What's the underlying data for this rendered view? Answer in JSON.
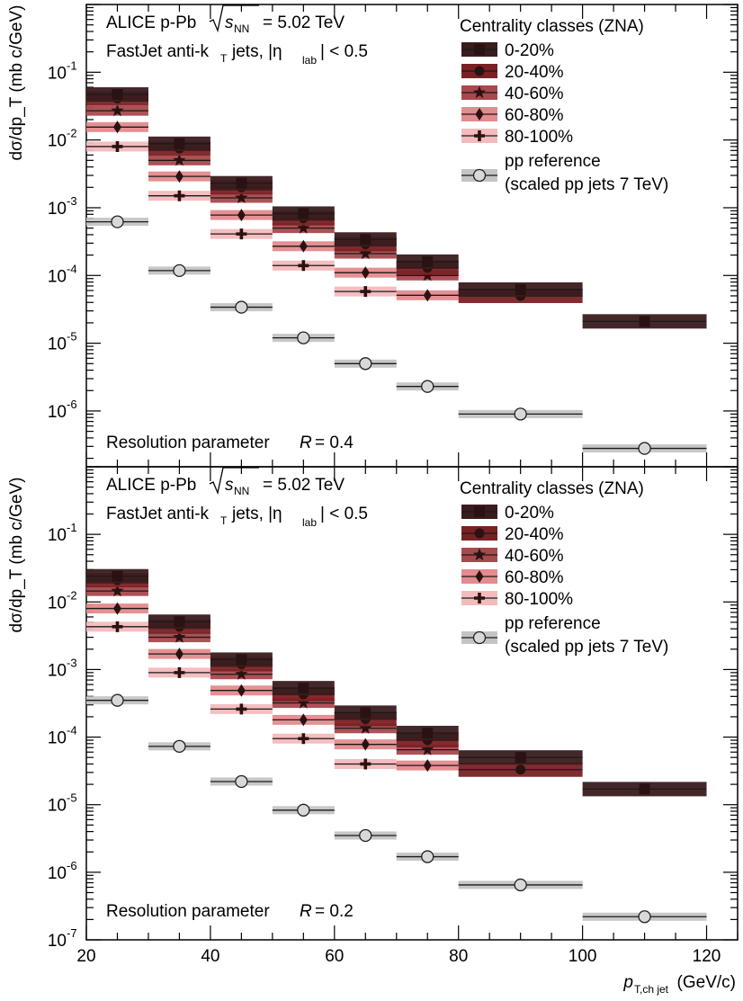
{
  "figure": {
    "xaxis_title_main": "p",
    "xaxis_title_sub": "T,ch jet",
    "xaxis_title_unit": "(GeV/c)"
  },
  "colors": {
    "0-20%": "#3a1c1e",
    "20-40%": "#7a2124",
    "40-60%": "#a8494d",
    "60-80%": "#e58a8d",
    "80-100%": "#f3bbbd",
    "pp reference": "#c4c4c4",
    "marker_pp_fill": "#d8d8d8"
  },
  "chart_data": [
    {
      "type": "scatter",
      "yscale": "log",
      "ylabel": "dσ/dp_T (mb c/GeV)",
      "xlabel": "p_T,ch jet (GeV/c)",
      "xlim": [
        20,
        125
      ],
      "ylim": [
        1.5e-07,
        1.0
      ],
      "xticks": [
        20,
        40,
        60,
        80,
        100,
        120
      ],
      "yticks": [
        {
          "value": 1e-06,
          "base": "10",
          "exp": "-6"
        },
        {
          "value": 1e-05,
          "base": "10",
          "exp": "-5"
        },
        {
          "value": 0.0001,
          "base": "10",
          "exp": "-4"
        },
        {
          "value": 0.001,
          "base": "10",
          "exp": "-3"
        },
        {
          "value": 0.01,
          "base": "10",
          "exp": "-2"
        },
        {
          "value": 0.1,
          "base": "10",
          "exp": "-1"
        }
      ],
      "annotation_line1": "ALICE p-Pb",
      "annotation_energy": "= 5.02 TeV",
      "annotation_line2": "FastJet anti-k",
      "annotation_line2_rest": "jets, |η",
      "annotation_line2_end": "| < 0.5",
      "resolution_label": "Resolution parameter",
      "resolution_value": "= 0.4",
      "legend_title": "Centrality classes (ZNA)",
      "legend_pp_line1": "pp reference",
      "legend_pp_line2": "(scaled pp jets 7 TeV)",
      "series": [
        {
          "name": "0-20%",
          "marker": "square",
          "points": [
            {
              "x": 25,
              "xlo": 20,
              "xhi": 30,
              "y": 0.047
            },
            {
              "x": 35,
              "xlo": 30,
              "xhi": 40,
              "y": 0.0088
            },
            {
              "x": 45,
              "xlo": 40,
              "xhi": 50,
              "y": 0.0023
            },
            {
              "x": 55,
              "xlo": 50,
              "xhi": 60,
              "y": 0.00082
            },
            {
              "x": 65,
              "xlo": 60,
              "xhi": 70,
              "y": 0.00034
            },
            {
              "x": 75,
              "xlo": 70,
              "xhi": 80,
              "y": 0.00016
            },
            {
              "x": 90,
              "xlo": 80,
              "xhi": 100,
              "y": 6.2e-05
            },
            {
              "x": 110,
              "xlo": 100,
              "xhi": 120,
              "y": 2.1e-05
            }
          ]
        },
        {
          "name": "20-40%",
          "marker": "circle",
          "points": [
            {
              "x": 25,
              "xlo": 20,
              "xhi": 30,
              "y": 0.041
            },
            {
              "x": 35,
              "xlo": 30,
              "xhi": 40,
              "y": 0.0075
            },
            {
              "x": 45,
              "xlo": 40,
              "xhi": 50,
              "y": 0.002
            },
            {
              "x": 55,
              "xlo": 50,
              "xhi": 60,
              "y": 0.0007
            },
            {
              "x": 65,
              "xlo": 60,
              "xhi": 70,
              "y": 0.00029
            },
            {
              "x": 75,
              "xlo": 70,
              "xhi": 80,
              "y": 0.00013
            },
            {
              "x": 90,
              "xlo": 80,
              "xhi": 100,
              "y": 5e-05
            }
          ]
        },
        {
          "name": "40-60%",
          "marker": "star",
          "points": [
            {
              "x": 25,
              "xlo": 20,
              "xhi": 30,
              "y": 0.027
            },
            {
              "x": 35,
              "xlo": 30,
              "xhi": 40,
              "y": 0.005
            },
            {
              "x": 45,
              "xlo": 40,
              "xhi": 50,
              "y": 0.0014
            },
            {
              "x": 55,
              "xlo": 50,
              "xhi": 60,
              "y": 0.0005
            },
            {
              "x": 65,
              "xlo": 60,
              "xhi": 70,
              "y": 0.00021
            },
            {
              "x": 75,
              "xlo": 70,
              "xhi": 80,
              "y": 0.0001
            }
          ]
        },
        {
          "name": "60-80%",
          "marker": "diamond",
          "points": [
            {
              "x": 25,
              "xlo": 20,
              "xhi": 30,
              "y": 0.0155
            },
            {
              "x": 35,
              "xlo": 30,
              "xhi": 40,
              "y": 0.0029
            },
            {
              "x": 45,
              "xlo": 40,
              "xhi": 50,
              "y": 0.00078
            },
            {
              "x": 55,
              "xlo": 50,
              "xhi": 60,
              "y": 0.00027
            },
            {
              "x": 65,
              "xlo": 60,
              "xhi": 70,
              "y": 0.00011
            },
            {
              "x": 75,
              "xlo": 70,
              "xhi": 80,
              "y": 5.1e-05
            }
          ]
        },
        {
          "name": "80-100%",
          "marker": "cross",
          "points": [
            {
              "x": 25,
              "xlo": 20,
              "xhi": 30,
              "y": 0.008
            },
            {
              "x": 35,
              "xlo": 30,
              "xhi": 40,
              "y": 0.0015
            },
            {
              "x": 45,
              "xlo": 40,
              "xhi": 50,
              "y": 0.00041
            },
            {
              "x": 55,
              "xlo": 50,
              "xhi": 60,
              "y": 0.00014
            },
            {
              "x": 65,
              "xlo": 60,
              "xhi": 70,
              "y": 5.8e-05
            }
          ]
        },
        {
          "name": "pp reference",
          "marker": "open-circle",
          "points": [
            {
              "x": 25,
              "xlo": 20,
              "xhi": 30,
              "y": 0.00062
            },
            {
              "x": 35,
              "xlo": 30,
              "xhi": 40,
              "y": 0.000118
            },
            {
              "x": 45,
              "xlo": 40,
              "xhi": 50,
              "y": 3.4e-05
            },
            {
              "x": 55,
              "xlo": 50,
              "xhi": 60,
              "y": 1.2e-05
            },
            {
              "x": 65,
              "xlo": 60,
              "xhi": 70,
              "y": 5e-06
            },
            {
              "x": 75,
              "xlo": 70,
              "xhi": 80,
              "y": 2.3e-06
            },
            {
              "x": 90,
              "xlo": 80,
              "xhi": 100,
              "y": 9e-07
            },
            {
              "x": 110,
              "xlo": 100,
              "xhi": 120,
              "y": 2.8e-07
            }
          ]
        }
      ]
    },
    {
      "type": "scatter",
      "yscale": "log",
      "ylabel": "dσ/dp_T (mb c/GeV)",
      "xlabel": "p_T,ch jet (GeV/c)",
      "xlim": [
        20,
        125
      ],
      "ylim": [
        1e-07,
        1.0
      ],
      "xticks": [
        20,
        40,
        60,
        80,
        100,
        120
      ],
      "yticks": [
        {
          "value": 1e-07,
          "base": "10",
          "exp": "-7"
        },
        {
          "value": 1e-06,
          "base": "10",
          "exp": "-6"
        },
        {
          "value": 1e-05,
          "base": "10",
          "exp": "-5"
        },
        {
          "value": 0.0001,
          "base": "10",
          "exp": "-4"
        },
        {
          "value": 0.001,
          "base": "10",
          "exp": "-3"
        },
        {
          "value": 0.01,
          "base": "10",
          "exp": "-2"
        },
        {
          "value": 0.1,
          "base": "10",
          "exp": "-1"
        }
      ],
      "annotation_line1": "ALICE p-Pb",
      "annotation_energy": "= 5.02 TeV",
      "annotation_line2": "FastJet anti-k",
      "annotation_line2_rest": "jets, |η",
      "annotation_line2_end": "| < 0.5",
      "resolution_label": "Resolution parameter",
      "resolution_value": "= 0.2",
      "legend_title": "Centrality classes (ZNA)",
      "legend_pp_line1": "pp reference",
      "legend_pp_line2": "(scaled pp jets 7 TeV)",
      "series": [
        {
          "name": "0-20%",
          "marker": "square",
          "points": [
            {
              "x": 25,
              "xlo": 20,
              "xhi": 30,
              "y": 0.024
            },
            {
              "x": 35,
              "xlo": 30,
              "xhi": 40,
              "y": 0.0051
            },
            {
              "x": 45,
              "xlo": 40,
              "xhi": 50,
              "y": 0.0014
            },
            {
              "x": 55,
              "xlo": 50,
              "xhi": 60,
              "y": 0.00053
            },
            {
              "x": 65,
              "xlo": 60,
              "xhi": 70,
              "y": 0.00023
            },
            {
              "x": 75,
              "xlo": 70,
              "xhi": 80,
              "y": 0.000115
            },
            {
              "x": 90,
              "xlo": 80,
              "xhi": 100,
              "y": 5e-05
            },
            {
              "x": 110,
              "xlo": 100,
              "xhi": 120,
              "y": 1.7e-05
            }
          ]
        },
        {
          "name": "20-40%",
          "marker": "circle",
          "points": [
            {
              "x": 25,
              "xlo": 20,
              "xhi": 30,
              "y": 0.021
            },
            {
              "x": 35,
              "xlo": 30,
              "xhi": 40,
              "y": 0.0043
            },
            {
              "x": 45,
              "xlo": 40,
              "xhi": 50,
              "y": 0.0012
            },
            {
              "x": 55,
              "xlo": 50,
              "xhi": 60,
              "y": 0.00043
            },
            {
              "x": 65,
              "xlo": 60,
              "xhi": 70,
              "y": 0.000185
            },
            {
              "x": 75,
              "xlo": 70,
              "xhi": 80,
              "y": 9e-05
            },
            {
              "x": 90,
              "xlo": 80,
              "xhi": 100,
              "y": 3.3e-05
            }
          ]
        },
        {
          "name": "40-60%",
          "marker": "star",
          "points": [
            {
              "x": 25,
              "xlo": 20,
              "xhi": 30,
              "y": 0.0145
            },
            {
              "x": 35,
              "xlo": 30,
              "xhi": 40,
              "y": 0.003
            },
            {
              "x": 45,
              "xlo": 40,
              "xhi": 50,
              "y": 0.00085
            },
            {
              "x": 55,
              "xlo": 50,
              "xhi": 60,
              "y": 0.00032
            },
            {
              "x": 65,
              "xlo": 60,
              "xhi": 70,
              "y": 0.000135
            },
            {
              "x": 75,
              "xlo": 70,
              "xhi": 80,
              "y": 6.5e-05
            }
          ]
        },
        {
          "name": "60-80%",
          "marker": "diamond",
          "points": [
            {
              "x": 25,
              "xlo": 20,
              "xhi": 30,
              "y": 0.008
            },
            {
              "x": 35,
              "xlo": 30,
              "xhi": 40,
              "y": 0.0017
            },
            {
              "x": 45,
              "xlo": 40,
              "xhi": 50,
              "y": 0.00049
            },
            {
              "x": 55,
              "xlo": 50,
              "xhi": 60,
              "y": 0.00018
            },
            {
              "x": 65,
              "xlo": 60,
              "xhi": 70,
              "y": 7.8e-05
            },
            {
              "x": 75,
              "xlo": 70,
              "xhi": 80,
              "y": 3.8e-05
            }
          ]
        },
        {
          "name": "80-100%",
          "marker": "cross",
          "points": [
            {
              "x": 25,
              "xlo": 20,
              "xhi": 30,
              "y": 0.0043
            },
            {
              "x": 35,
              "xlo": 30,
              "xhi": 40,
              "y": 0.0009
            },
            {
              "x": 45,
              "xlo": 40,
              "xhi": 50,
              "y": 0.00026
            },
            {
              "x": 55,
              "xlo": 50,
              "xhi": 60,
              "y": 9.5e-05
            },
            {
              "x": 65,
              "xlo": 60,
              "xhi": 70,
              "y": 4e-05
            }
          ]
        },
        {
          "name": "pp reference",
          "marker": "open-circle",
          "points": [
            {
              "x": 25,
              "xlo": 20,
              "xhi": 30,
              "y": 0.00035
            },
            {
              "x": 35,
              "xlo": 30,
              "xhi": 40,
              "y": 7.3e-05
            },
            {
              "x": 45,
              "xlo": 40,
              "xhi": 50,
              "y": 2.2e-05
            },
            {
              "x": 55,
              "xlo": 50,
              "xhi": 60,
              "y": 8.3e-06
            },
            {
              "x": 65,
              "xlo": 60,
              "xhi": 70,
              "y": 3.5e-06
            },
            {
              "x": 75,
              "xlo": 70,
              "xhi": 80,
              "y": 1.7e-06
            },
            {
              "x": 90,
              "xlo": 80,
              "xhi": 100,
              "y": 6.5e-07
            },
            {
              "x": 110,
              "xlo": 100,
              "xhi": 120,
              "y": 2.2e-07
            }
          ]
        }
      ]
    }
  ]
}
